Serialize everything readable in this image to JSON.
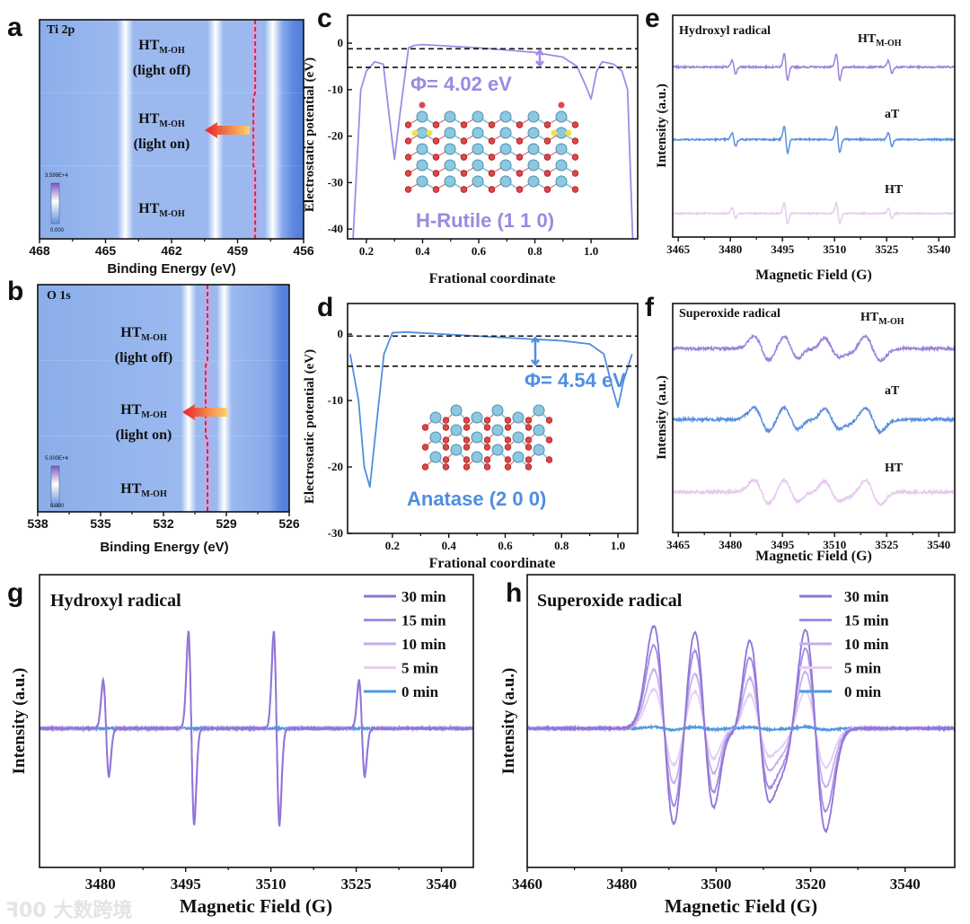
{
  "watermark": {
    "logo": "ꟻ00",
    "text": "大数跨境"
  },
  "chart_data": [
    {
      "panel": "a",
      "type": "heatmap",
      "title": "Ti 2p",
      "xlabel": "Binding Energy (eV)",
      "xlim": [
        468,
        456
      ],
      "xticks": [
        468,
        465,
        462,
        459,
        456
      ],
      "rows": [
        {
          "label": "HT",
          "sub": "M-OH",
          "note": "(light off)"
        },
        {
          "label": "HT",
          "sub": "M-OH",
          "note": "(light on)"
        },
        {
          "label": "HT",
          "sub": "M-OH",
          "note": ""
        }
      ],
      "peak_line_eV": 458.2,
      "bands": [
        {
          "center_eV": 464.1,
          "type": "white"
        },
        {
          "center_eV": 460.0,
          "type": "white"
        },
        {
          "center_eV": 458.2,
          "type": "purple"
        },
        {
          "center_eV": 457.4,
          "type": "white"
        }
      ],
      "colorbar": {
        "max": "3.599E+4",
        "min": "0.000"
      }
    },
    {
      "panel": "b",
      "type": "heatmap",
      "title": "O 1s",
      "xlabel": "Binding Energy (eV)",
      "xlim": [
        538,
        526
      ],
      "xticks": [
        538,
        535,
        532,
        529,
        526
      ],
      "rows": [
        {
          "label": "HT",
          "sub": "M-OH",
          "note": "(light off)"
        },
        {
          "label": "HT",
          "sub": "M-OH",
          "note": "(light on)"
        },
        {
          "label": "HT",
          "sub": "M-OH",
          "note": ""
        }
      ],
      "peak_line_eV": 529.9,
      "bands": [
        {
          "center_eV": 530.8,
          "type": "white"
        },
        {
          "center_eV": 529.9,
          "type": "purple"
        },
        {
          "center_eV": 529.1,
          "type": "white"
        }
      ],
      "colorbar": {
        "max": "5.000E+4",
        "min": "0.000"
      }
    },
    {
      "panel": "c",
      "type": "line",
      "xlabel": "Frational coordinate",
      "ylabel": "Electrostatic potential (eV)",
      "xlim": [
        0.133,
        1.166
      ],
      "ylim": [
        -42.1,
        6
      ],
      "xticks": [
        0.2,
        0.4,
        0.6,
        0.8,
        1.0
      ],
      "yticks": [
        0,
        -10,
        -20,
        -30,
        -40
      ],
      "color": "#a08ae6",
      "x": [
        0.15,
        0.18,
        0.2,
        0.23,
        0.26,
        0.28,
        0.3,
        0.32,
        0.35,
        0.37,
        0.4,
        0.6,
        0.8,
        0.9,
        0.95,
        0.98,
        1.0,
        1.02,
        1.04,
        1.08,
        1.11,
        1.13,
        1.15
      ],
      "y": [
        -45,
        -10,
        -6,
        -4,
        -4.5,
        -15,
        -25,
        -15,
        -1,
        -0.5,
        -0.3,
        -1,
        -2,
        -3,
        -5,
        -9,
        -12,
        -6,
        -4,
        -4.5,
        -6,
        -10,
        -45
      ],
      "vacuum_level": -1.2,
      "fermi_level": -5.22,
      "work_function_label": "Φ= 4.02 eV",
      "structure_label": "H-Rutile (1 1 0)"
    },
    {
      "panel": "d",
      "type": "line",
      "xlabel": "Frational coordinate",
      "ylabel": "Electrostatic potential (eV)",
      "xlim": [
        0.041,
        1.07
      ],
      "ylim": [
        -30,
        4.6
      ],
      "xticks": [
        0.2,
        0.4,
        0.6,
        0.8,
        1.0
      ],
      "yticks": [
        0,
        -10,
        -20,
        -30
      ],
      "color": "#4f8ee0",
      "x": [
        0.05,
        0.08,
        0.1,
        0.12,
        0.14,
        0.17,
        0.2,
        0.25,
        0.5,
        0.8,
        0.9,
        0.95,
        0.98,
        1.0,
        1.02,
        1.05
      ],
      "y": [
        -3,
        -10,
        -20,
        -23,
        -15,
        -3,
        0.2,
        0.3,
        -0.3,
        -1,
        -1.5,
        -3,
        -8,
        -11,
        -7,
        -3
      ],
      "vacuum_level": -0.3,
      "fermi_level": -4.84,
      "work_function_label": "Φ= 4.54 eV",
      "structure_label": "Anatase (2 0 0)"
    },
    {
      "panel": "e",
      "type": "line",
      "title": "Hydroxyl radical",
      "xlabel": "Magnetic Field (G)",
      "ylabel": "Intensity (a.u.)",
      "xlim": [
        3463.4,
        3544.6
      ],
      "ylim": [
        0,
        3
      ],
      "xticks": [
        3465,
        3480,
        3495,
        3510,
        3525,
        3540
      ],
      "line_centers_G": [
        3481,
        3496,
        3511,
        3526
      ],
      "relative_intensities": [
        1,
        2,
        2,
        1
      ],
      "linewidth_G": 0.5,
      "series": [
        {
          "name": "HT",
          "sub": "M-OH",
          "color": "#9a82dc",
          "offset": 2.3,
          "scale": 0.09
        },
        {
          "name": "aT",
          "sub": "",
          "color": "#5a8fe0",
          "offset": 1.32,
          "scale": 0.09
        },
        {
          "name": "HT",
          "sub": "",
          "color": "#e8c8f0",
          "offset": 0.32,
          "scale": 0.07
        }
      ]
    },
    {
      "panel": "f",
      "type": "line",
      "title": "Superoxide radical",
      "xlabel": "Magnetic Field (G)",
      "ylabel": "Intensity (a.u.)",
      "xlim": [
        3463.4,
        3544.6
      ],
      "ylim": [
        0,
        3
      ],
      "xticks": [
        3465,
        3480,
        3495,
        3510,
        3525,
        3540
      ],
      "line_centers_G": [
        3489,
        3497.5,
        3503,
        3509,
        3513,
        3521
      ],
      "relative_intensities": [
        1,
        1,
        0.3,
        1,
        0.3,
        1
      ],
      "linewidth_G": 2.2,
      "series": [
        {
          "name": "HT",
          "sub": "M-OH",
          "color": "#9a82dc",
          "offset": 2.41,
          "scale": 0.16
        },
        {
          "name": "aT",
          "sub": "",
          "color": "#5a8fe0",
          "offset": 1.48,
          "scale": 0.16
        },
        {
          "name": "HT",
          "sub": "",
          "color": "#e8c8f0",
          "offset": 0.53,
          "scale": 0.16
        }
      ]
    },
    {
      "panel": "g",
      "type": "line",
      "title": "Hydroxyl radical",
      "xlabel": "Magnetic Field (G)",
      "ylabel": "Intensity (a.u.)",
      "xlim": [
        3469.3,
        3545.6
      ],
      "ylim": [
        -2.85,
        3.15
      ],
      "xticks": [
        3480,
        3495,
        3510,
        3525,
        3540
      ],
      "line_centers_G": [
        3481,
        3496,
        3511,
        3526
      ],
      "relative_intensities": [
        1,
        2,
        2,
        1
      ],
      "linewidth_G": 0.5,
      "legend": "top-right",
      "series": [
        {
          "name": "30 min",
          "color": "#8f74d8",
          "scale": 1.0
        },
        {
          "name": "15 min",
          "color": "#a58be3",
          "scale": 0.95
        },
        {
          "name": "10 min",
          "color": "#c4aeee",
          "scale": 0.9
        },
        {
          "name": "5 min",
          "color": "#e5cdf3",
          "scale": 0.85
        },
        {
          "name": "0 min",
          "color": "#4f97e2",
          "scale": 0.0
        }
      ]
    },
    {
      "panel": "h",
      "type": "line",
      "title": "Superoxide radical",
      "xlabel": "Magnetic Field (G)",
      "ylabel": "Intensity (a.u.)",
      "xlim": [
        3460,
        3550.5
      ],
      "ylim": [
        -2.85,
        3.15
      ],
      "xticks": [
        3460,
        3480,
        3500,
        3520,
        3540
      ],
      "line_centers_G": [
        3489,
        3497.5,
        3503,
        3509,
        3513,
        3521
      ],
      "relative_intensities": [
        1,
        1,
        0.3,
        1,
        0.3,
        1
      ],
      "linewidth_G": 2.2,
      "legend": "top-right",
      "series": [
        {
          "name": "30 min",
          "color": "#8f74d8",
          "scale": 2.1
        },
        {
          "name": "15 min",
          "color": "#a58be3",
          "scale": 1.7
        },
        {
          "name": "10 min",
          "color": "#c4aeee",
          "scale": 1.2
        },
        {
          "name": "5 min",
          "color": "#e5cdf3",
          "scale": 0.8
        },
        {
          "name": "0 min",
          "color": "#4f97e2",
          "scale": 0.03
        }
      ]
    }
  ]
}
